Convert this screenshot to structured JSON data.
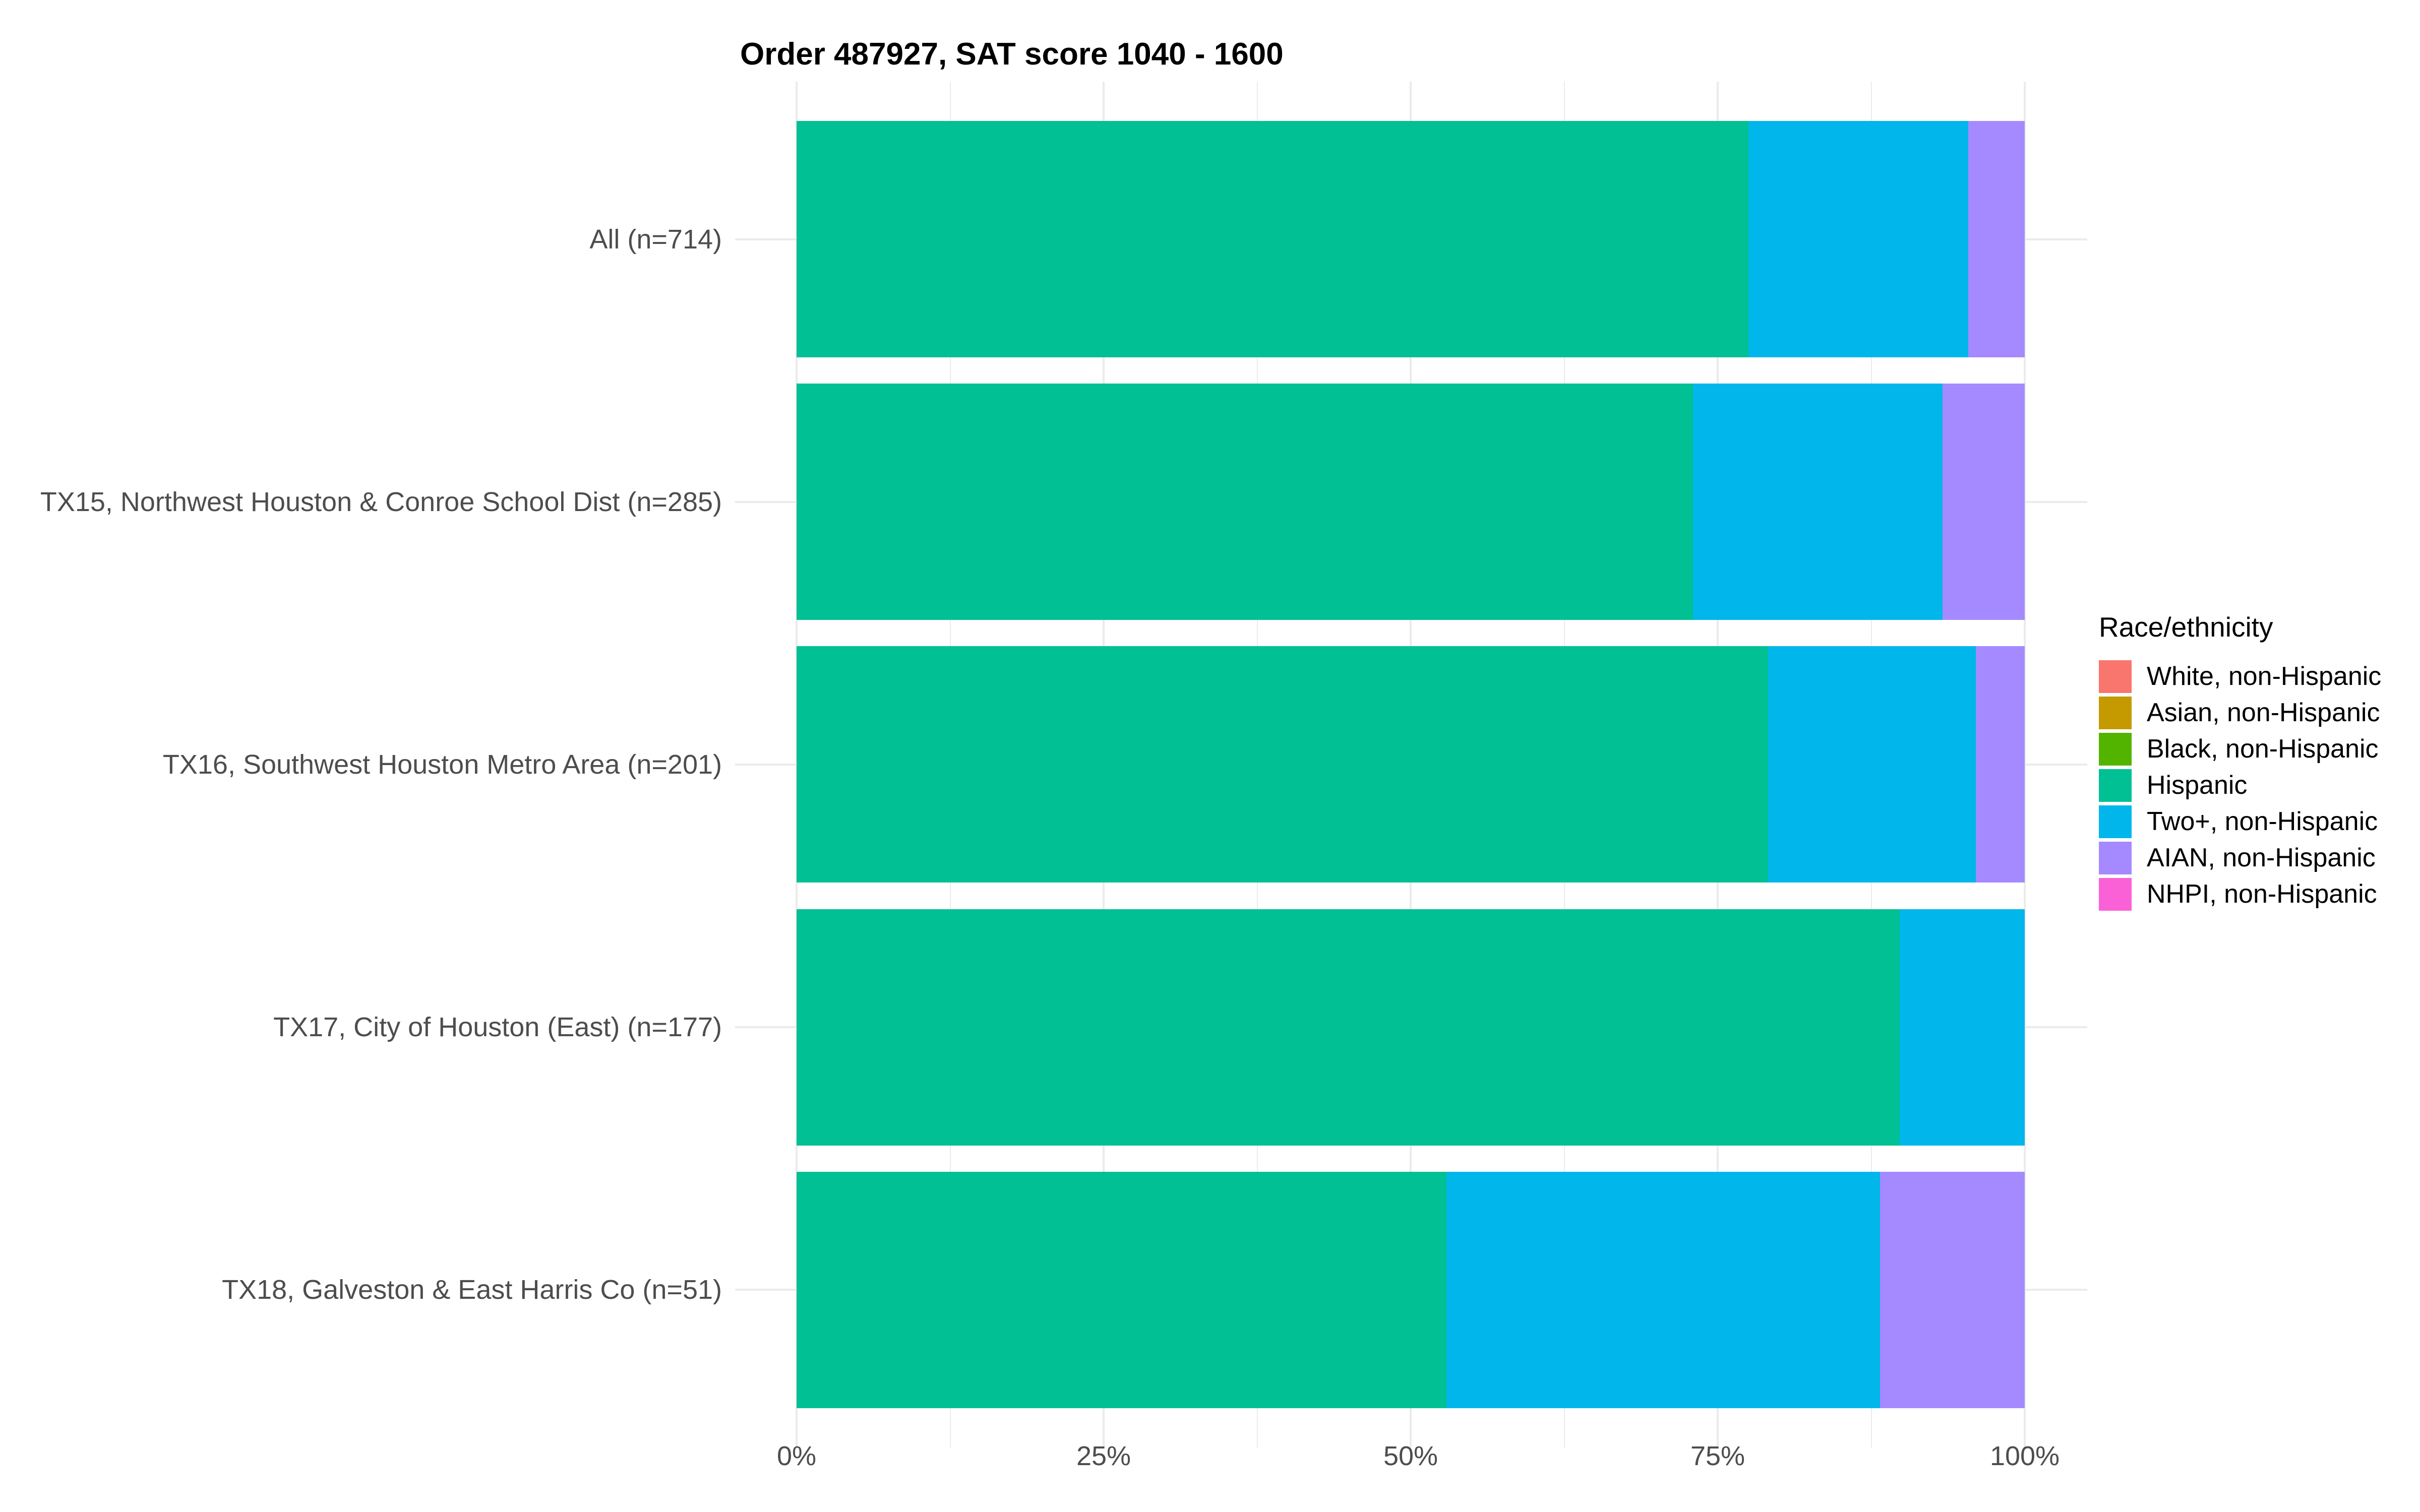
{
  "title": "Order 487927, SAT score 1040 - 1600",
  "chart_data": {
    "type": "bar",
    "orientation": "horizontal",
    "stacked": true,
    "value_unit": "percent",
    "title": "Order 487927, SAT score 1040 - 1600",
    "xlabel": "",
    "ylabel": "",
    "categories": [
      "All (n=714)",
      "TX15, Northwest Houston & Conroe School Dist (n=285)",
      "TX16, Southwest Houston Metro Area (n=201)",
      "TX17, City of Houston (East) (n=177)",
      "TX18, Galveston & East Harris Co (n=51)"
    ],
    "series": [
      {
        "name": "White, non-Hispanic",
        "color": "#F8766D",
        "values": [
          0,
          0,
          0,
          0,
          0
        ]
      },
      {
        "name": "Asian, non-Hispanic",
        "color": "#C49A00",
        "values": [
          0,
          0,
          0,
          0,
          0
        ]
      },
      {
        "name": "Black, non-Hispanic",
        "color": "#53B400",
        "values": [
          0,
          0,
          0,
          0,
          0
        ]
      },
      {
        "name": "Hispanic",
        "color": "#00C094",
        "values": [
          77.5,
          73.0,
          79.1,
          89.8,
          52.9
        ]
      },
      {
        "name": "Two+, non-Hispanic",
        "color": "#00B6EB",
        "values": [
          17.9,
          20.3,
          16.9,
          10.2,
          35.3
        ]
      },
      {
        "name": "AIAN, non-Hispanic",
        "color": "#A58AFF",
        "values": [
          4.6,
          6.7,
          4.0,
          0,
          11.8
        ]
      },
      {
        "name": "NHPI, non-Hispanic",
        "color": "#FB61D7",
        "values": [
          0,
          0,
          0,
          0,
          0
        ]
      }
    ],
    "x_axis": {
      "range": [
        0,
        100
      ],
      "ticks": [
        {
          "label": "0%",
          "value": 0
        },
        {
          "label": "25%",
          "value": 25
        },
        {
          "label": "50%",
          "value": 50
        },
        {
          "label": "75%",
          "value": 75
        },
        {
          "label": "100%",
          "value": 100
        }
      ],
      "minor_tick_values": [
        12.5,
        37.5,
        62.5,
        87.5
      ]
    },
    "legend": {
      "title": "Race/ethnicity",
      "position": "right"
    },
    "grid": true,
    "colors": {
      "grid": "#EBEBEB",
      "axis_text": "#4D4D4D",
      "title_text": "#000000",
      "background": "#FFFFFF"
    }
  }
}
